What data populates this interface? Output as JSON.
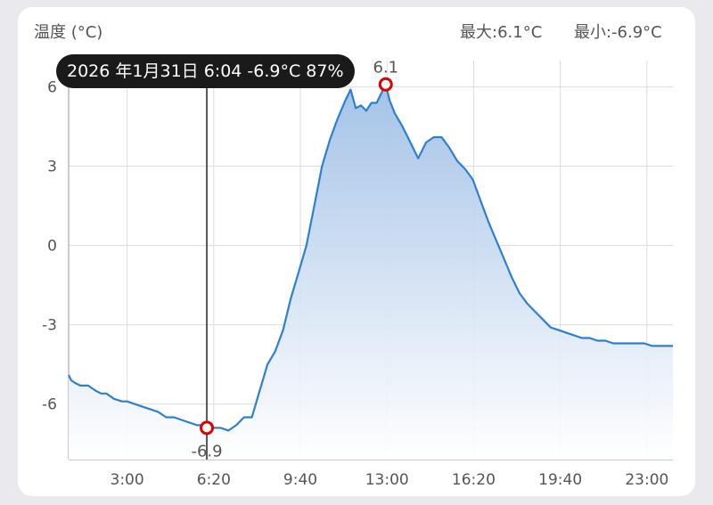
{
  "header": {
    "title": "温度 (°C)",
    "max_label": "最大:6.1°C",
    "min_label": "最小:-6.9°C"
  },
  "tooltip": {
    "text": "2026 年1月31日 6:04 -6.9°C 87%"
  },
  "colors": {
    "line": "#2f7fcf",
    "fill_top": "#9fbfe6",
    "fill_bottom": "#ffffff",
    "marker": "#e00000",
    "grid": "#dcdcdc",
    "cursor": "#555555"
  },
  "chart_data": {
    "type": "area",
    "xlabel": "",
    "ylabel": "温度 (°C)",
    "x_unit": "time of day (hours)",
    "xlim": [
      0.75,
      24.0
    ],
    "ylim": [
      -8.1,
      7.0
    ],
    "x_ticks": [
      {
        "value": 3.0,
        "label": "3:00"
      },
      {
        "value": 6.333,
        "label": "6:20"
      },
      {
        "value": 9.667,
        "label": "9:40"
      },
      {
        "value": 13.0,
        "label": "13:00"
      },
      {
        "value": 16.333,
        "label": "16:20"
      },
      {
        "value": 19.667,
        "label": "19:40"
      },
      {
        "value": 23.0,
        "label": "23:00"
      }
    ],
    "y_ticks": [
      {
        "value": 6,
        "label": "6"
      },
      {
        "value": 3,
        "label": "3"
      },
      {
        "value": 0,
        "label": "0"
      },
      {
        "value": -3,
        "label": "-3"
      },
      {
        "value": -6,
        "label": "-6"
      }
    ],
    "grid": true,
    "cursor_x": 6.067,
    "extremes": [
      {
        "x": 12.95,
        "y": 6.1,
        "label": "6.1",
        "label_pos": "above"
      },
      {
        "x": 6.067,
        "y": -6.9,
        "label": "-6.9",
        "label_pos": "below"
      }
    ],
    "series": [
      {
        "x": [
          0.75,
          0.85,
          1.0,
          1.2,
          1.5,
          1.8,
          2.0,
          2.2,
          2.5,
          2.8,
          3.0,
          3.3,
          3.6,
          3.9,
          4.2,
          4.5,
          4.8,
          5.1,
          5.4,
          5.7,
          6.0,
          6.3,
          6.6,
          6.9,
          7.2,
          7.5,
          7.8,
          8.1,
          8.4,
          8.7,
          9.0,
          9.3,
          9.6,
          9.9,
          10.2,
          10.5,
          10.8,
          11.1,
          11.4,
          11.6,
          11.8,
          12.0,
          12.2,
          12.4,
          12.6,
          12.8,
          12.95,
          13.1,
          13.3,
          13.6,
          13.9,
          14.2,
          14.5,
          14.8,
          15.1,
          15.4,
          15.7,
          16.0,
          16.3,
          16.6,
          16.9,
          17.2,
          17.5,
          17.8,
          18.1,
          18.4,
          18.7,
          19.0,
          19.3,
          19.6,
          19.9,
          20.2,
          20.5,
          20.8,
          21.1,
          21.4,
          21.7,
          22.0,
          22.3,
          22.6,
          22.9,
          23.2,
          23.5,
          23.8,
          24.0
        ],
        "y": [
          -4.9,
          -5.1,
          -5.2,
          -5.3,
          -5.3,
          -5.5,
          -5.6,
          -5.6,
          -5.8,
          -5.9,
          -5.9,
          -6.0,
          -6.1,
          -6.2,
          -6.3,
          -6.5,
          -6.5,
          -6.6,
          -6.7,
          -6.8,
          -6.8,
          -6.9,
          -6.9,
          -7.0,
          -6.8,
          -6.5,
          -6.5,
          -5.5,
          -4.5,
          -4.0,
          -3.2,
          -2.0,
          -1.0,
          0.0,
          1.5,
          3.0,
          4.0,
          4.8,
          5.5,
          5.9,
          5.2,
          5.3,
          5.1,
          5.4,
          5.4,
          5.8,
          6.1,
          5.5,
          5.0,
          4.5,
          3.9,
          3.3,
          3.9,
          4.1,
          4.1,
          3.7,
          3.2,
          2.9,
          2.5,
          1.7,
          0.9,
          0.2,
          -0.5,
          -1.2,
          -1.8,
          -2.2,
          -2.5,
          -2.8,
          -3.1,
          -3.2,
          -3.3,
          -3.4,
          -3.5,
          -3.5,
          -3.6,
          -3.6,
          -3.7,
          -3.7,
          -3.7,
          -3.7,
          -3.7,
          -3.8,
          -3.8,
          -3.8,
          -3.8
        ]
      }
    ]
  }
}
